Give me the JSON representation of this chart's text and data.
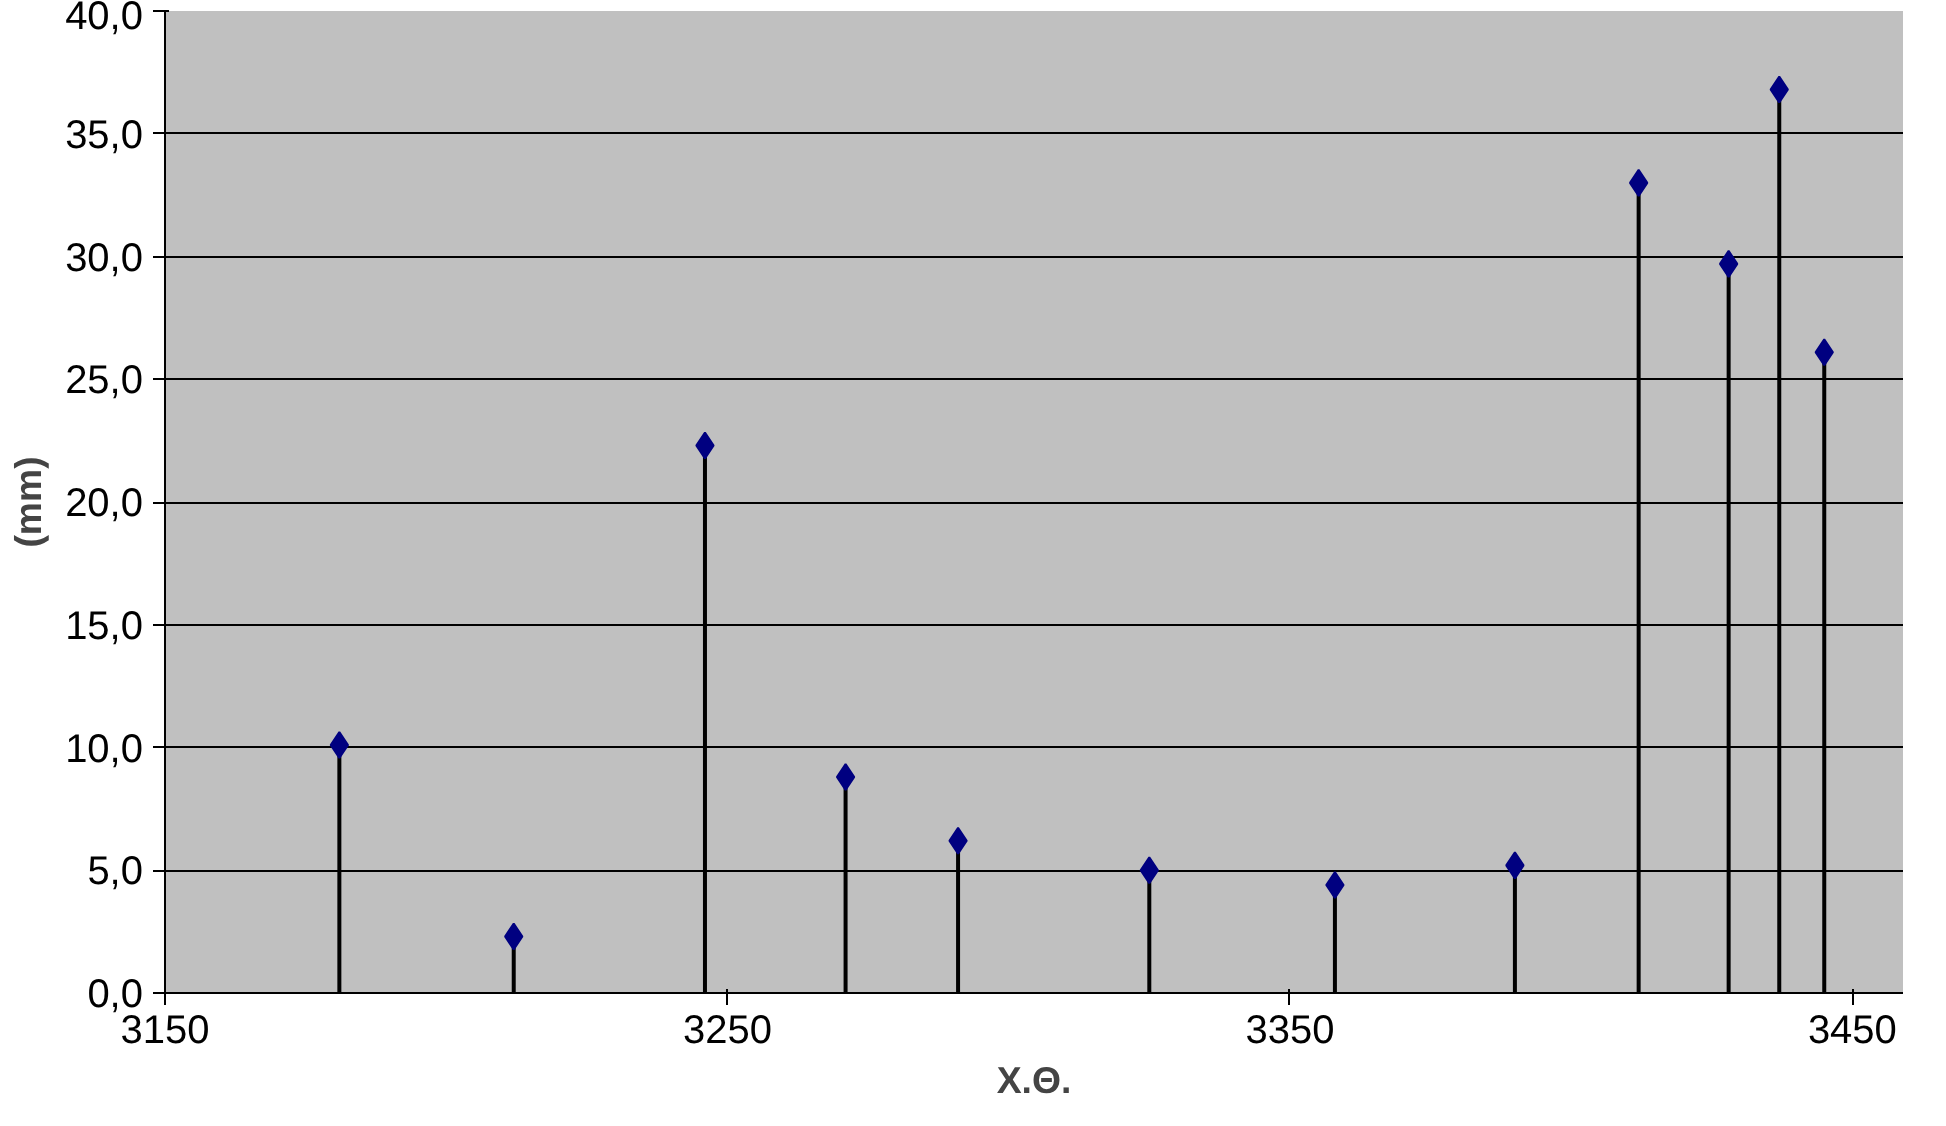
{
  "chart_data": {
    "type": "lollipop",
    "xlabel": "Χ.Θ.",
    "ylabel": "(mm)",
    "x": [
      3181,
      3212,
      3246,
      3271,
      3291,
      3325,
      3358,
      3390,
      3412,
      3428,
      3437,
      3445
    ],
    "series": [
      {
        "color": "#000080",
        "values": [
          10.1,
          2.3,
          22.3,
          8.8,
          6.2,
          5.0,
          4.4,
          5.2,
          33.0,
          29.7,
          36.8,
          26.1
        ]
      }
    ],
    "xlim": [
      3150,
      3459
    ],
    "xticks": [
      3150,
      3250,
      3350,
      3450
    ],
    "ylim": [
      0,
      40
    ],
    "yticks": [
      {
        "value": 0,
        "label": "0,0"
      },
      {
        "value": 5,
        "label": "5,0"
      },
      {
        "value": 10,
        "label": "10,0"
      },
      {
        "value": 15,
        "label": "15,0"
      },
      {
        "value": 20,
        "label": "20,0"
      },
      {
        "value": 25,
        "label": "25,0"
      },
      {
        "value": 30,
        "label": "30,0"
      },
      {
        "value": 35,
        "label": "35,0"
      },
      {
        "value": 40,
        "label": "40,0"
      }
    ],
    "grid": "y",
    "marker": "diamond"
  }
}
